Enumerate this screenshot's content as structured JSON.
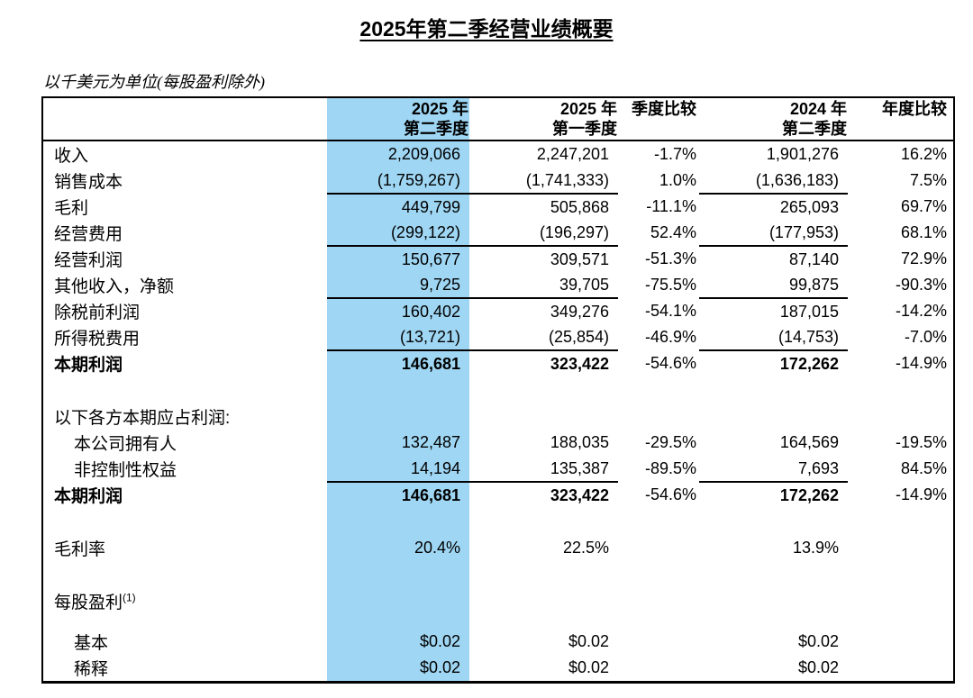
{
  "title": "2025年第二季经营业绩概要",
  "subtitle": "以千美元为单位(每股盈利除外)",
  "colors": {
    "highlight_column": "#9FD6F3",
    "border": "#000000",
    "text": "#000000"
  },
  "table": {
    "columns": [
      {
        "line1": "",
        "line2": ""
      },
      {
        "line1": "2025 年",
        "line2": "第二季度",
        "highlight": true
      },
      {
        "line1": "2025 年",
        "line2": "第一季度"
      },
      {
        "line1": "季度比较",
        "line2": ""
      },
      {
        "line1": "2024 年",
        "line2": "第二季度"
      },
      {
        "line1": "年度比较",
        "line2": ""
      }
    ],
    "rows": [
      {
        "type": "data",
        "label": "收入",
        "values": [
          "2,209,066",
          "2,247,201",
          "-1.7%",
          "1,901,276",
          "16.2%"
        ]
      },
      {
        "type": "data",
        "label": "销售成本",
        "underline": true,
        "values": [
          "(1,759,267)",
          "(1,741,333)",
          "1.0%",
          "(1,636,183)",
          "7.5%"
        ]
      },
      {
        "type": "data",
        "label": "毛利",
        "values": [
          "449,799",
          "505,868",
          "-11.1%",
          "265,093",
          "69.7%"
        ]
      },
      {
        "type": "data",
        "label": "经营费用",
        "underline": true,
        "values": [
          "(299,122)",
          "(196,297)",
          "52.4%",
          "(177,953)",
          "68.1%"
        ]
      },
      {
        "type": "data",
        "label": "经营利润",
        "values": [
          "150,677",
          "309,571",
          "-51.3%",
          "87,140",
          "72.9%"
        ]
      },
      {
        "type": "data",
        "label": "其他收入，净额",
        "underline": true,
        "values": [
          "9,725",
          "39,705",
          "-75.5%",
          "99,875",
          "-90.3%"
        ]
      },
      {
        "type": "data",
        "label": "除税前利润",
        "values": [
          "160,402",
          "349,276",
          "-54.1%",
          "187,015",
          "-14.2%"
        ]
      },
      {
        "type": "data",
        "label": "所得税费用",
        "underline": true,
        "values": [
          "(13,721)",
          "(25,854)",
          "-46.9%",
          "(14,753)",
          "-7.0%"
        ]
      },
      {
        "type": "data",
        "label": "本期利润",
        "bold": true,
        "values": [
          "146,681",
          "323,422",
          "-54.6%",
          "172,262",
          "-14.9%"
        ]
      },
      {
        "type": "spacer",
        "size": "tall"
      },
      {
        "type": "data",
        "label": "以下各方本期应占利润:",
        "values": [
          "",
          "",
          "",
          "",
          ""
        ]
      },
      {
        "type": "data",
        "label": "本公司拥有人",
        "indent": true,
        "values": [
          "132,487",
          "188,035",
          "-29.5%",
          "164,569",
          "-19.5%"
        ]
      },
      {
        "type": "data",
        "label": "非控制性权益",
        "indent": true,
        "underline": true,
        "values": [
          "14,194",
          "135,387",
          "-89.5%",
          "7,693",
          "84.5%"
        ]
      },
      {
        "type": "data",
        "label": "本期利润",
        "bold": true,
        "values": [
          "146,681",
          "323,422",
          "-54.6%",
          "172,262",
          "-14.9%"
        ]
      },
      {
        "type": "spacer",
        "size": "tall"
      },
      {
        "type": "data",
        "label": "毛利率",
        "values": [
          "20.4%",
          "22.5%",
          "",
          "13.9%",
          ""
        ]
      },
      {
        "type": "spacer",
        "size": "tall"
      },
      {
        "type": "data",
        "label": "每股盈利",
        "sup": "(1)",
        "values": [
          "",
          "",
          "",
          "",
          ""
        ]
      },
      {
        "type": "spacer",
        "size": "short"
      },
      {
        "type": "data",
        "label": "基本",
        "indent": true,
        "values": [
          "$0.02",
          "$0.02",
          "",
          "$0.02",
          ""
        ]
      },
      {
        "type": "data",
        "label": "稀释",
        "indent": true,
        "values": [
          "$0.02",
          "$0.02",
          "",
          "$0.02",
          ""
        ]
      }
    ]
  }
}
